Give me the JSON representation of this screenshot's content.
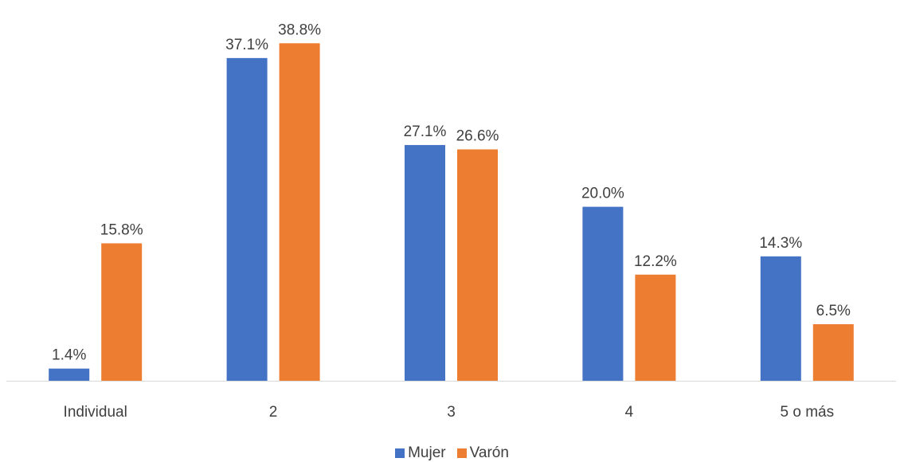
{
  "chart_data": {
    "type": "bar",
    "categories": [
      "Individual",
      "2",
      "3",
      "4",
      "5 o más"
    ],
    "series": [
      {
        "name": "Mujer",
        "color": "#4472C4",
        "values": [
          1.4,
          37.1,
          27.1,
          20.0,
          14.3
        ],
        "labels": [
          "1.4%",
          "37.1%",
          "27.1%",
          "20.0%",
          "14.3%"
        ]
      },
      {
        "name": "Varón",
        "color": "#ED7D31",
        "values": [
          15.8,
          38.8,
          26.6,
          12.2,
          6.5
        ],
        "labels": [
          "15.8%",
          "38.8%",
          "26.6%",
          "12.2%",
          "6.5%"
        ]
      }
    ],
    "ylim": [
      0,
      40
    ],
    "grid": false,
    "legend_position": "bottom"
  }
}
